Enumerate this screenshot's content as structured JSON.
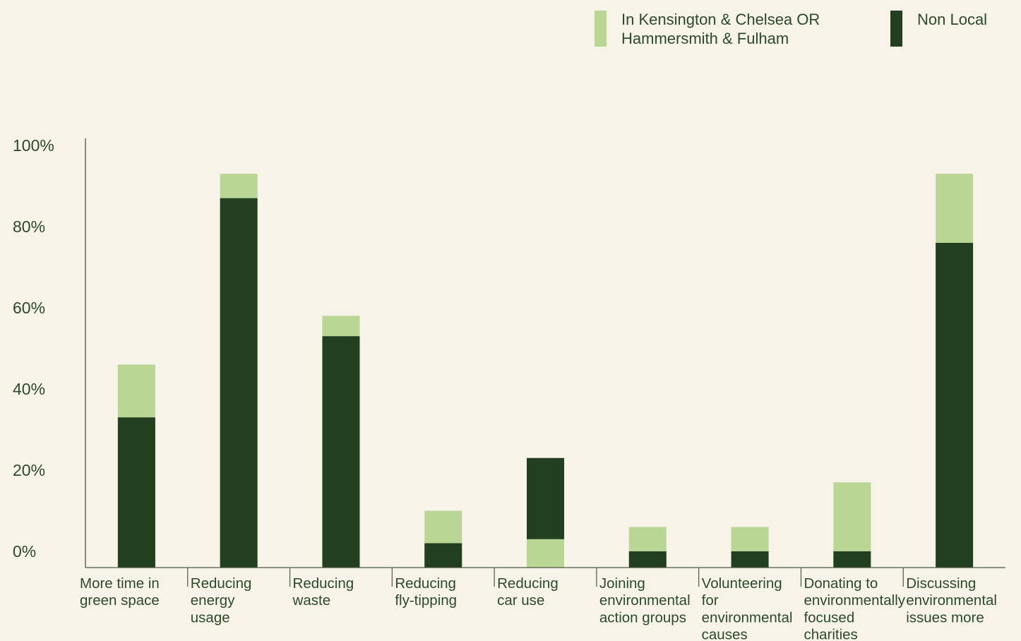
{
  "colors": {
    "background": "#f7f3e8",
    "local": "#bad694",
    "nonlocal": "#223f1f",
    "axis": "#4a5a45",
    "text": "#2c4a29"
  },
  "legend": {
    "local_label": "In Kensington & Chelsea OR\nHammersmith & Fulham",
    "nonlocal_label": "Non Local"
  },
  "chart_data": {
    "type": "bar",
    "stacked": false,
    "overlapping": true,
    "ylim": [
      0,
      100
    ],
    "yticks": [
      "0%",
      "20%",
      "40%",
      "60%",
      "80%",
      "100%"
    ],
    "legend_position": "top-right",
    "grid": false,
    "categories": [
      [
        "More time in",
        "green space"
      ],
      [
        "Reducing",
        "energy",
        "usage"
      ],
      [
        "Reducing",
        "waste"
      ],
      [
        "Reducing",
        "fly-tipping"
      ],
      [
        "Reducing",
        "car use"
      ],
      [
        "Joining",
        "environmental",
        "action groups"
      ],
      [
        "Volunteering",
        "for",
        "environmental",
        "causes"
      ],
      [
        "Donating to",
        "environmentally",
        "focused",
        "charities"
      ],
      [
        "Discussing",
        "environmental",
        "issues more"
      ]
    ],
    "series": [
      {
        "name": "In Kensington & Chelsea OR Hammersmith & Fulham",
        "key": "local",
        "values": [
          50,
          97,
          62,
          14,
          7,
          10,
          10,
          21,
          97
        ]
      },
      {
        "name": "Non Local",
        "key": "nonlocal",
        "values": [
          37,
          91,
          57,
          6,
          27,
          4,
          4,
          4,
          80
        ]
      }
    ]
  }
}
